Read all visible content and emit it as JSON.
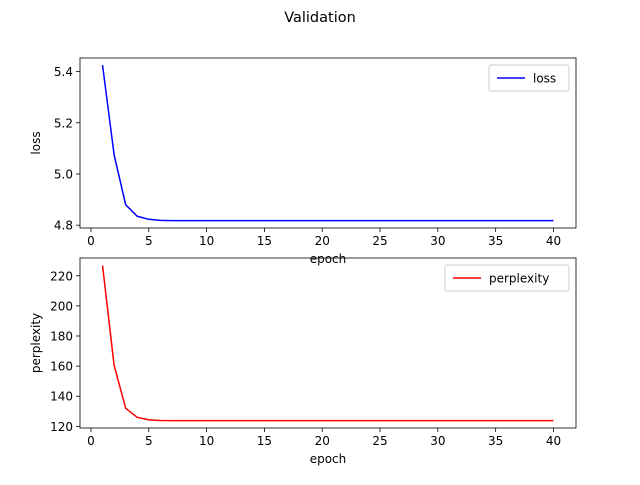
{
  "figure": {
    "title": "Validation"
  },
  "chart_data": [
    {
      "type": "line",
      "title": "",
      "xlabel": "epoch",
      "ylabel": "loss",
      "xlim": [
        -0.95,
        41.95
      ],
      "ylim": [
        4.789,
        5.453
      ],
      "xticks": [
        0,
        5,
        10,
        15,
        20,
        25,
        30,
        35,
        40
      ],
      "yticks": [
        4.8,
        5.0,
        5.2,
        5.4
      ],
      "ytick_labels": [
        "4.8",
        "5.0",
        "5.2",
        "5.4"
      ],
      "grid": false,
      "legend_position": "top-right",
      "series": [
        {
          "name": "loss",
          "color": "#0000ff",
          "x": [
            1,
            2,
            3,
            4,
            5,
            6,
            7,
            8,
            9,
            10,
            11,
            12,
            13,
            14,
            15,
            16,
            17,
            18,
            19,
            20,
            21,
            22,
            23,
            24,
            25,
            26,
            27,
            28,
            29,
            30,
            31,
            32,
            33,
            34,
            35,
            36,
            37,
            38,
            39,
            40
          ],
          "y": [
            5.425,
            5.075,
            4.88,
            4.835,
            4.823,
            4.819,
            4.818,
            4.818,
            4.818,
            4.818,
            4.818,
            4.818,
            4.818,
            4.818,
            4.818,
            4.818,
            4.818,
            4.818,
            4.818,
            4.818,
            4.818,
            4.818,
            4.818,
            4.818,
            4.818,
            4.818,
            4.818,
            4.818,
            4.818,
            4.818,
            4.818,
            4.818,
            4.818,
            4.818,
            4.818,
            4.818,
            4.818,
            4.818,
            4.818,
            4.818
          ]
        }
      ]
    },
    {
      "type": "line",
      "title": "",
      "xlabel": "epoch",
      "ylabel": "perplexity",
      "xlim": [
        -0.95,
        41.95
      ],
      "ylim": [
        118.9,
        231.8
      ],
      "xticks": [
        0,
        5,
        10,
        15,
        20,
        25,
        30,
        35,
        40
      ],
      "yticks": [
        120,
        140,
        160,
        180,
        200,
        220
      ],
      "ytick_labels": [
        "120",
        "140",
        "160",
        "180",
        "200",
        "220"
      ],
      "grid": false,
      "legend_position": "top-right",
      "series": [
        {
          "name": "perplexity",
          "color": "#ff0000",
          "x": [
            1,
            2,
            3,
            4,
            5,
            6,
            7,
            8,
            9,
            10,
            11,
            12,
            13,
            14,
            15,
            16,
            17,
            18,
            19,
            20,
            21,
            22,
            23,
            24,
            25,
            26,
            27,
            28,
            29,
            30,
            31,
            32,
            33,
            34,
            35,
            36,
            37,
            38,
            39,
            40
          ],
          "y": [
            226.8,
            160.5,
            132.0,
            126.0,
            124.3,
            123.9,
            123.8,
            123.8,
            123.8,
            123.8,
            123.8,
            123.8,
            123.8,
            123.8,
            123.8,
            123.8,
            123.8,
            123.8,
            123.8,
            123.8,
            123.8,
            123.8,
            123.8,
            123.8,
            123.8,
            123.8,
            123.8,
            123.8,
            123.8,
            123.8,
            123.8,
            123.8,
            123.8,
            123.8,
            123.8,
            123.8,
            123.8,
            123.8,
            123.8,
            123.8
          ]
        }
      ]
    }
  ]
}
